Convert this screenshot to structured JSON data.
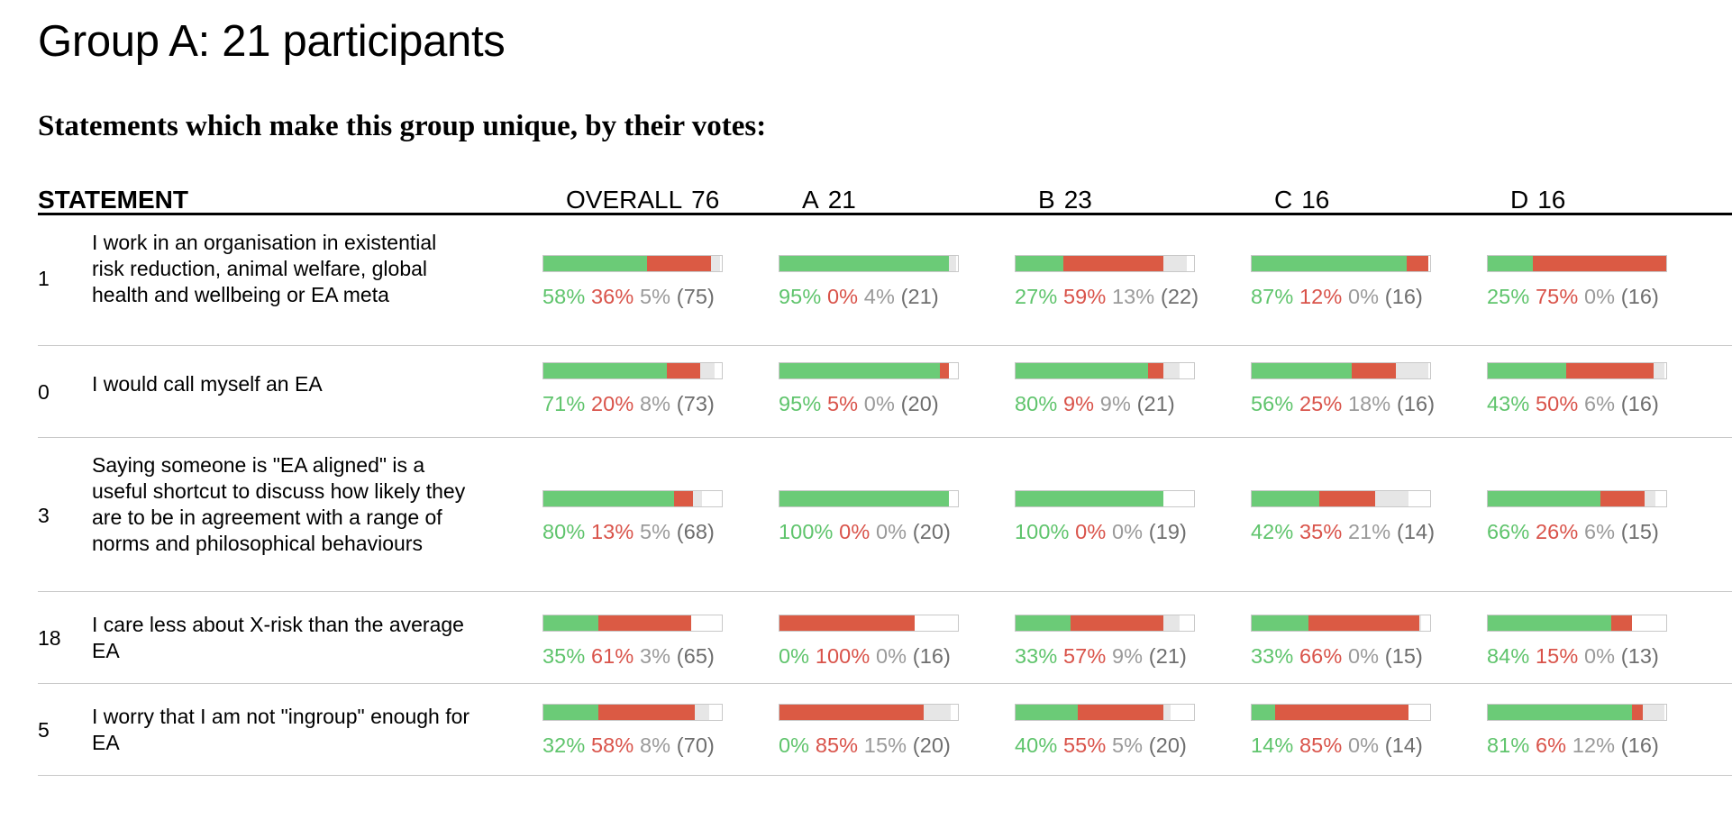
{
  "title": "Group A: 21 participants",
  "subtitle": "Statements which make this group unique, by their votes:",
  "colors": {
    "agree": "#6bcb77",
    "disagree": "#db5a44",
    "pass": "#e6e6e6"
  },
  "columns": {
    "statement_label": "STATEMENT",
    "groups": [
      {
        "label": "OVERALL",
        "count": "76"
      },
      {
        "label": "A",
        "count": "21"
      },
      {
        "label": "B",
        "count": "23"
      },
      {
        "label": "C",
        "count": "16"
      },
      {
        "label": "D",
        "count": "16"
      }
    ]
  },
  "rows": [
    {
      "id": "1",
      "text": "I work in an organisation in existential risk reduction, animal welfare, global health and wellbeing or EA meta",
      "cells": [
        {
          "agree": "58%",
          "disagree": "36%",
          "pass": "5%",
          "n": "(75)",
          "a": 58,
          "d": 36,
          "p": 5
        },
        {
          "agree": "95%",
          "disagree": "0%",
          "pass": "4%",
          "n": "(21)",
          "a": 95,
          "d": 0,
          "p": 4
        },
        {
          "agree": "27%",
          "disagree": "59%",
          "pass": "13%",
          "n": "(22)",
          "a": 27,
          "d": 56,
          "p": 13
        },
        {
          "agree": "87%",
          "disagree": "12%",
          "pass": "0%",
          "n": "(16)",
          "a": 87,
          "d": 12,
          "p": 0
        },
        {
          "agree": "25%",
          "disagree": "75%",
          "pass": "0%",
          "n": "(16)",
          "a": 25,
          "d": 75,
          "p": 0
        }
      ]
    },
    {
      "id": "0",
      "text": "I would call myself an EA",
      "cells": [
        {
          "agree": "71%",
          "disagree": "20%",
          "pass": "8%",
          "n": "(73)",
          "a": 69,
          "d": 19,
          "p": 8
        },
        {
          "agree": "95%",
          "disagree": "5%",
          "pass": "0%",
          "n": "(20)",
          "a": 90,
          "d": 5,
          "p": 0
        },
        {
          "agree": "80%",
          "disagree": "9%",
          "pass": "9%",
          "n": "(21)",
          "a": 74,
          "d": 9,
          "p": 9
        },
        {
          "agree": "56%",
          "disagree": "25%",
          "pass": "18%",
          "n": "(16)",
          "a": 56,
          "d": 25,
          "p": 18
        },
        {
          "agree": "43%",
          "disagree": "50%",
          "pass": "6%",
          "n": "(16)",
          "a": 44,
          "d": 49,
          "p": 6
        }
      ]
    },
    {
      "id": "3",
      "text": "Saying someone is \"EA aligned\" is a useful shortcut to discuss how likely they are to be in agreement with a range of norms and philosophical behaviours",
      "cells": [
        {
          "agree": "80%",
          "disagree": "13%",
          "pass": "5%",
          "n": "(68)",
          "a": 73,
          "d": 11,
          "p": 5
        },
        {
          "agree": "100%",
          "disagree": "0%",
          "pass": "0%",
          "n": "(20)",
          "a": 95,
          "d": 0,
          "p": 0
        },
        {
          "agree": "100%",
          "disagree": "0%",
          "pass": "0%",
          "n": "(19)",
          "a": 83,
          "d": 0,
          "p": 0
        },
        {
          "agree": "42%",
          "disagree": "35%",
          "pass": "21%",
          "n": "(14)",
          "a": 38,
          "d": 31,
          "p": 19
        },
        {
          "agree": "66%",
          "disagree": "26%",
          "pass": "6%",
          "n": "(15)",
          "a": 63,
          "d": 25,
          "p": 6
        }
      ]
    },
    {
      "id": "18",
      "text": "I care less about X-risk than the average EA",
      "cells": [
        {
          "agree": "35%",
          "disagree": "61%",
          "pass": "3%",
          "n": "(65)",
          "a": 31,
          "d": 52,
          "p": 0
        },
        {
          "agree": "0%",
          "disagree": "100%",
          "pass": "0%",
          "n": "(16)",
          "a": 0,
          "d": 76,
          "p": 0
        },
        {
          "agree": "33%",
          "disagree": "57%",
          "pass": "9%",
          "n": "(21)",
          "a": 31,
          "d": 52,
          "p": 9
        },
        {
          "agree": "33%",
          "disagree": "66%",
          "pass": "0%",
          "n": "(15)",
          "a": 32,
          "d": 62,
          "p": 1
        },
        {
          "agree": "84%",
          "disagree": "15%",
          "pass": "0%",
          "n": "(13)",
          "a": 69,
          "d": 12,
          "p": 0
        }
      ]
    },
    {
      "id": "5",
      "text": "I worry that I am not \"ingroup\" enough for EA",
      "cells": [
        {
          "agree": "32%",
          "disagree": "58%",
          "pass": "8%",
          "n": "(70)",
          "a": 31,
          "d": 54,
          "p": 8
        },
        {
          "agree": "0%",
          "disagree": "85%",
          "pass": "15%",
          "n": "(20)",
          "a": 0,
          "d": 81,
          "p": 15
        },
        {
          "agree": "40%",
          "disagree": "55%",
          "pass": "5%",
          "n": "(20)",
          "a": 35,
          "d": 48,
          "p": 4
        },
        {
          "agree": "14%",
          "disagree": "85%",
          "pass": "0%",
          "n": "(14)",
          "a": 13,
          "d": 75,
          "p": 0
        },
        {
          "agree": "81%",
          "disagree": "6%",
          "pass": "12%",
          "n": "(16)",
          "a": 81,
          "d": 6,
          "p": 12
        }
      ]
    }
  ]
}
